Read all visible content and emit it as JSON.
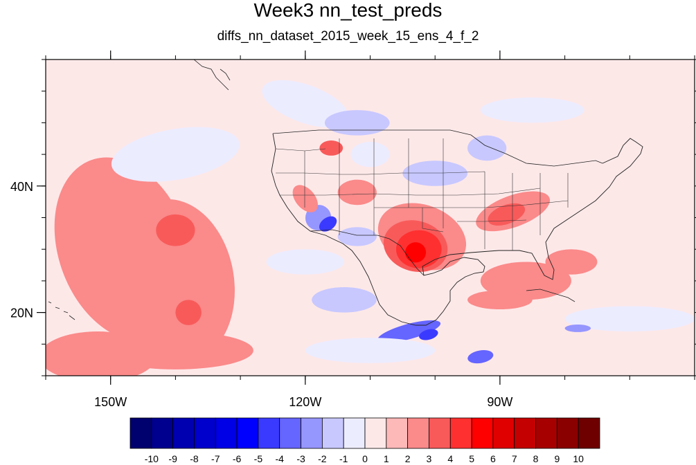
{
  "title": "Week3 nn_test_preds",
  "subtitle": "diffs_nn_dataset_2015_week_15_ens_4_f_2",
  "map": {
    "lon_range": [
      -160,
      -60
    ],
    "lat_range": [
      10,
      60
    ],
    "x_ticks": [
      {
        "lon": -150,
        "label": "150W"
      },
      {
        "lon": -120,
        "label": "120W"
      },
      {
        "lon": -90,
        "label": "90W"
      }
    ],
    "y_ticks": [
      {
        "lat": 20,
        "label": "20N"
      },
      {
        "lat": 40,
        "label": "40N"
      }
    ],
    "minor_x_ticks": [
      -160,
      -150,
      -140,
      -130,
      -120,
      -110,
      -100,
      -90,
      -80,
      -70,
      -60
    ],
    "minor_y_ticks": [
      10,
      15,
      20,
      25,
      30,
      35,
      40,
      45,
      50,
      55,
      60
    ],
    "background_color": "#fde8e8"
  },
  "colorbar": {
    "labels": [
      "-10",
      "-9",
      "-8",
      "-7",
      "-6",
      "-5",
      "-4",
      "-3",
      "-2",
      "-1",
      "0",
      "1",
      "2",
      "3",
      "4",
      "5",
      "6",
      "7",
      "8",
      "9",
      "10"
    ],
    "colors": [
      "#00006e",
      "#00008f",
      "#0000b0",
      "#0000cc",
      "#0000e6",
      "#0000ff",
      "#3a3aff",
      "#6565ff",
      "#9696ff",
      "#c8c8ff",
      "#ececff",
      "#fde8e8",
      "#fdb8b8",
      "#fb8a8a",
      "#f85a5a",
      "#ff3030",
      "#ff0000",
      "#e00000",
      "#c40000",
      "#a60000",
      "#8a0000",
      "#6e0000"
    ]
  },
  "anomalies": [
    {
      "lon": -148,
      "lat": 30,
      "rx": 10,
      "ry": 15,
      "rot": -20,
      "value": 2
    },
    {
      "lon": -140,
      "lat": 25,
      "rx": 9,
      "ry": 13,
      "rot": -10,
      "value": 2
    },
    {
      "lon": -152,
      "lat": 13,
      "rx": 9,
      "ry": 4,
      "rot": 0,
      "value": 2
    },
    {
      "lon": -140,
      "lat": 14,
      "rx": 12,
      "ry": 3,
      "rot": 0,
      "value": 2
    },
    {
      "lon": -140,
      "lat": 33,
      "rx": 3,
      "ry": 2.5,
      "rot": 0,
      "value": 3
    },
    {
      "lon": -138,
      "lat": 20,
      "rx": 2,
      "ry": 2,
      "rot": 0,
      "value": 3
    },
    {
      "lon": -140,
      "lat": 45,
      "rx": 10,
      "ry": 4,
      "rot": -10,
      "value": -1
    },
    {
      "lon": -120,
      "lat": 53,
      "rx": 7,
      "ry": 3,
      "rot": 20,
      "value": -1
    },
    {
      "lon": -112,
      "lat": 50,
      "rx": 5,
      "ry": 2,
      "rot": 0,
      "value": -2
    },
    {
      "lon": -85,
      "lat": 52,
      "rx": 8,
      "ry": 2,
      "rot": 0,
      "value": -1
    },
    {
      "lon": -92,
      "lat": 46,
      "rx": 3,
      "ry": 2,
      "rot": 0,
      "value": -2
    },
    {
      "lon": -110,
      "lat": 45,
      "rx": 3,
      "ry": 2,
      "rot": 0,
      "value": -1
    },
    {
      "lon": -116,
      "lat": 46,
      "rx": 1.8,
      "ry": 1.2,
      "rot": 0,
      "value": 3
    },
    {
      "lon": -100,
      "lat": 42,
      "rx": 5,
      "ry": 2,
      "rot": 0,
      "value": -2
    },
    {
      "lon": -118,
      "lat": 35,
      "rx": 2,
      "ry": 2,
      "rot": -35,
      "value": -3
    },
    {
      "lon": -116.5,
      "lat": 34,
      "rx": 1.5,
      "ry": 1,
      "rot": -35,
      "value": -5
    },
    {
      "lon": -120,
      "lat": 38,
      "rx": 1.5,
      "ry": 2.5,
      "rot": -40,
      "value": 2
    },
    {
      "lon": -112,
      "lat": 32,
      "rx": 3,
      "ry": 1.5,
      "rot": 0,
      "value": -2
    },
    {
      "lon": -112,
      "lat": 39,
      "rx": 3,
      "ry": 2,
      "rot": 0,
      "value": 2
    },
    {
      "lon": -102,
      "lat": 32,
      "rx": 7,
      "ry": 5,
      "rot": 20,
      "value": 2
    },
    {
      "lon": -103,
      "lat": 30.5,
      "rx": 5,
      "ry": 4,
      "rot": 15,
      "value": 3
    },
    {
      "lon": -102.5,
      "lat": 30,
      "rx": 3.5,
      "ry": 3,
      "rot": 0,
      "value": 4
    },
    {
      "lon": -103,
      "lat": 29.5,
      "rx": 1.6,
      "ry": 1.6,
      "rot": 0,
      "value": 5
    },
    {
      "lon": -88,
      "lat": 36,
      "rx": 6,
      "ry": 2.5,
      "rot": -20,
      "value": 2
    },
    {
      "lon": -89,
      "lat": 35.5,
      "rx": 3,
      "ry": 1.5,
      "rot": -20,
      "value": 3
    },
    {
      "lon": -86,
      "lat": 25,
      "rx": 7,
      "ry": 3,
      "rot": 0,
      "value": 2
    },
    {
      "lon": -79,
      "lat": 28,
      "rx": 4,
      "ry": 2,
      "rot": 0,
      "value": 2
    },
    {
      "lon": -90,
      "lat": 22,
      "rx": 5,
      "ry": 1.5,
      "rot": 0,
      "value": 2
    },
    {
      "lon": -114,
      "lat": 22,
      "rx": 5,
      "ry": 2,
      "rot": 0,
      "value": -2
    },
    {
      "lon": -104,
      "lat": 17,
      "rx": 5,
      "ry": 1.2,
      "rot": -15,
      "value": -4
    },
    {
      "lon": -101,
      "lat": 16.5,
      "rx": 1.5,
      "ry": 0.8,
      "rot": -15,
      "value": -5
    },
    {
      "lon": -93,
      "lat": 13,
      "rx": 2,
      "ry": 1,
      "rot": -10,
      "value": -4
    },
    {
      "lon": -70,
      "lat": 19,
      "rx": 10,
      "ry": 2,
      "rot": 0,
      "value": -1
    },
    {
      "lon": -78,
      "lat": 17.5,
      "rx": 2,
      "ry": 0.6,
      "rot": 0,
      "value": -3
    },
    {
      "lon": -110,
      "lat": 14,
      "rx": 10,
      "ry": 2,
      "rot": 0,
      "value": -1
    },
    {
      "lon": -120,
      "lat": 28,
      "rx": 6,
      "ry": 2,
      "rot": 0,
      "value": -1
    }
  ]
}
